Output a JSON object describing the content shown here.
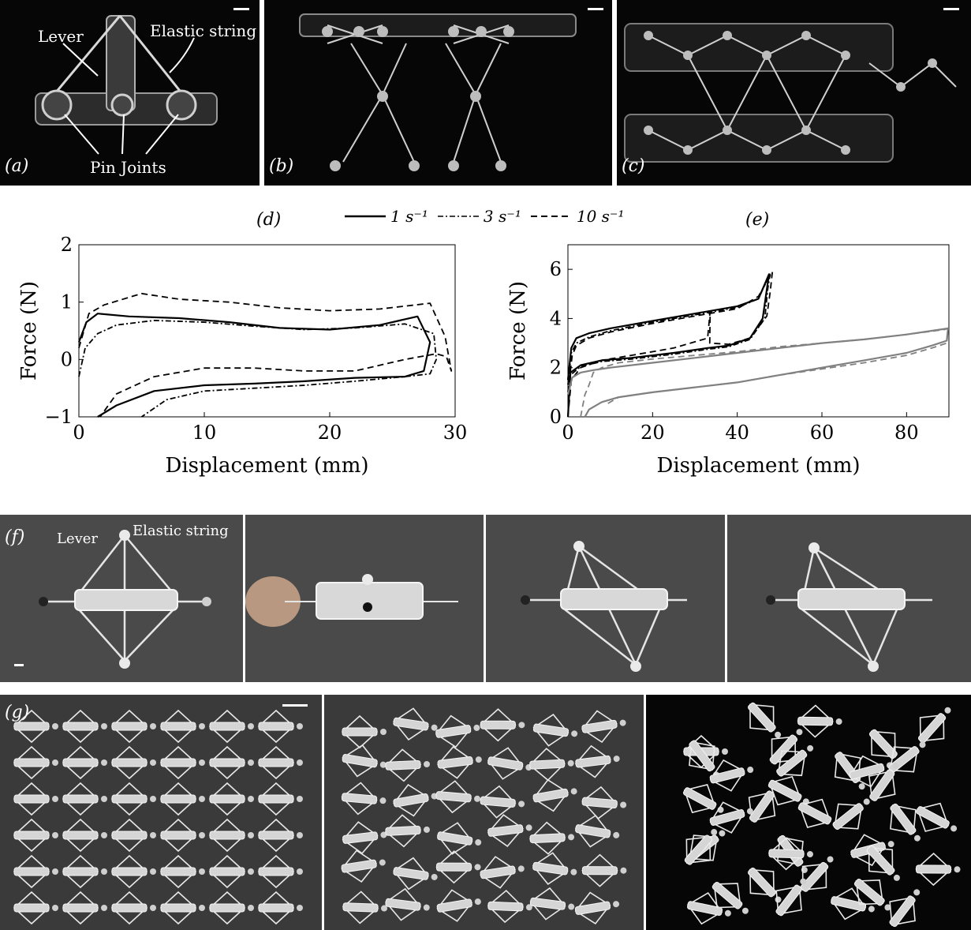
{
  "panels": {
    "a": {
      "label": "(a)",
      "annotations": {
        "lever": "Lever",
        "elastic": "Elastic string",
        "pins": "Pin Joints"
      }
    },
    "b": {
      "label": "(b)"
    },
    "c": {
      "label": "(c)"
    },
    "d": {
      "label": "(d)"
    },
    "e": {
      "label": "(e)"
    },
    "f": {
      "label": "(f)",
      "annotations": {
        "lever": "Lever",
        "elastic": "Elastic string"
      }
    },
    "g": {
      "label": "(g)"
    }
  },
  "legend": [
    {
      "label": "1 s⁻¹",
      "style": "solid"
    },
    {
      "label": "3 s⁻¹",
      "style": "dashdot"
    },
    {
      "label": "10 s⁻¹",
      "style": "dashed"
    }
  ],
  "chart_data": [
    {
      "id": "d",
      "type": "line",
      "xlabel": "Displacement (mm)",
      "ylabel": "Force (N)",
      "xlim": [
        0,
        30
      ],
      "ylim": [
        -1,
        2
      ],
      "xticks": [
        "0",
        "10",
        "20",
        "30"
      ],
      "yticks": [
        "−1",
        "0",
        "1",
        "2"
      ],
      "series": [
        {
          "name": "1 s⁻¹",
          "style": "solid",
          "color": "#000000",
          "x": [
            0,
            0.6,
            1.5,
            4,
            8,
            12,
            16,
            20,
            24,
            27,
            28,
            27.5,
            26,
            22,
            18,
            14,
            10,
            6,
            3,
            1.5
          ],
          "y": [
            0.3,
            0.65,
            0.8,
            0.75,
            0.72,
            0.65,
            0.55,
            0.52,
            0.6,
            0.75,
            0.3,
            -0.2,
            -0.3,
            -0.32,
            -0.38,
            -0.42,
            -0.45,
            -0.55,
            -0.8,
            -1
          ]
        },
        {
          "name": "3 s⁻¹",
          "style": "dashdot",
          "color": "#000000",
          "x": [
            0,
            0.5,
            1.5,
            3,
            6,
            10,
            14,
            18,
            22,
            26,
            28.3,
            28.5,
            28,
            26,
            22,
            18,
            14,
            10,
            7,
            5
          ],
          "y": [
            -0.3,
            0.2,
            0.45,
            0.6,
            0.68,
            0.65,
            0.58,
            0.52,
            0.55,
            0.62,
            0.45,
            0,
            -0.25,
            -0.3,
            -0.38,
            -0.45,
            -0.5,
            -0.55,
            -0.7,
            -1
          ]
        },
        {
          "name": "10 s⁻¹",
          "style": "dashed",
          "color": "#000000",
          "x": [
            0,
            0.8,
            2,
            5,
            8,
            12,
            16,
            20,
            24,
            28,
            29.2,
            29.7,
            29.3,
            28.5,
            26,
            22,
            18,
            14,
            10,
            6,
            3,
            1.7
          ],
          "y": [
            0.2,
            0.8,
            0.95,
            1.15,
            1.05,
            1.0,
            0.9,
            0.85,
            0.88,
            0.98,
            0.4,
            -0.2,
            0.05,
            0.1,
            0.0,
            -0.2,
            -0.2,
            -0.15,
            -0.15,
            -0.3,
            -0.6,
            -1
          ]
        }
      ]
    },
    {
      "id": "e",
      "type": "line",
      "xlabel": "Displacement (mm)",
      "ylabel": "Force (N)",
      "xlim": [
        0,
        90
      ],
      "ylim": [
        0,
        7
      ],
      "xticks": [
        "0",
        "20",
        "40",
        "60",
        "80"
      ],
      "yticks": [
        "0",
        "2",
        "4",
        "6"
      ],
      "series": [
        {
          "name": "1 s⁻¹",
          "style": "solid",
          "color": "#000000",
          "x": [
            0,
            0.8,
            2,
            5,
            10,
            20,
            30,
            40,
            45,
            47.5,
            47,
            46,
            43,
            38,
            33,
            25,
            15,
            8,
            3,
            0.6,
            0
          ],
          "y": [
            1.5,
            2.8,
            3.2,
            3.4,
            3.6,
            3.9,
            4.2,
            4.5,
            4.8,
            5.8,
            5.2,
            4.0,
            3.2,
            2.9,
            2.8,
            2.6,
            2.4,
            2.3,
            2.1,
            1.8,
            0
          ]
        },
        {
          "name": "3 s⁻¹",
          "style": "dashdot",
          "color": "#000000",
          "x": [
            0,
            0.8,
            2,
            5,
            10,
            20,
            30,
            40,
            45,
            47.8,
            47.2,
            46.5,
            43,
            38,
            33,
            25,
            15,
            8,
            3,
            0.6,
            0
          ],
          "y": [
            1.3,
            2.6,
            3.0,
            3.25,
            3.5,
            3.85,
            4.15,
            4.45,
            4.8,
            5.85,
            5.2,
            4.0,
            3.15,
            2.85,
            2.75,
            2.55,
            2.35,
            2.25,
            2.05,
            1.7,
            0
          ]
        },
        {
          "name": "10 s⁻¹",
          "style": "dashed",
          "color": "#000000",
          "x": [
            0,
            1,
            2,
            5,
            10,
            20,
            30,
            40,
            45,
            48.3,
            47.8,
            47,
            43,
            38,
            33.5,
            33.6,
            33,
            25,
            15,
            8,
            3,
            0.8,
            0
          ],
          "y": [
            1.0,
            2.5,
            2.9,
            3.2,
            3.45,
            3.8,
            4.1,
            4.4,
            4.9,
            5.9,
            5.1,
            4.1,
            3.2,
            2.95,
            3.0,
            4.3,
            3.2,
            2.8,
            2.5,
            2.3,
            2.0,
            1.5,
            0
          ]
        },
        {
          "name": "1 s⁻¹",
          "style": "solid",
          "color": "#808080",
          "x": [
            0,
            1,
            3,
            6,
            10,
            20,
            30,
            40,
            50,
            60,
            70,
            80,
            88,
            89.8,
            89.5,
            86,
            80,
            70,
            60,
            50,
            40,
            30,
            20,
            12,
            8,
            5,
            4
          ],
          "y": [
            0.9,
            1.6,
            1.8,
            1.9,
            2.0,
            2.2,
            2.4,
            2.6,
            2.8,
            3.0,
            3.15,
            3.35,
            3.55,
            3.6,
            3.1,
            2.9,
            2.6,
            2.3,
            2.0,
            1.7,
            1.4,
            1.2,
            1.0,
            0.8,
            0.6,
            0.3,
            0
          ]
        },
        {
          "name": "10 s⁻¹",
          "style": "dashed",
          "color": "#808080",
          "x": [
            3,
            4,
            5,
            6,
            8,
            12,
            20,
            30,
            40,
            50,
            60,
            70,
            80,
            89,
            89.8,
            89.5,
            86,
            80,
            70,
            60,
            50,
            40,
            30,
            20,
            12,
            9
          ],
          "y": [
            0,
            0.9,
            1.3,
            1.8,
            2.0,
            2.2,
            2.35,
            2.5,
            2.65,
            2.85,
            3.0,
            3.15,
            3.35,
            3.55,
            3.6,
            3.0,
            2.8,
            2.5,
            2.2,
            1.95,
            1.7,
            1.4,
            1.2,
            1.0,
            0.8,
            0.5
          ]
        }
      ]
    }
  ]
}
